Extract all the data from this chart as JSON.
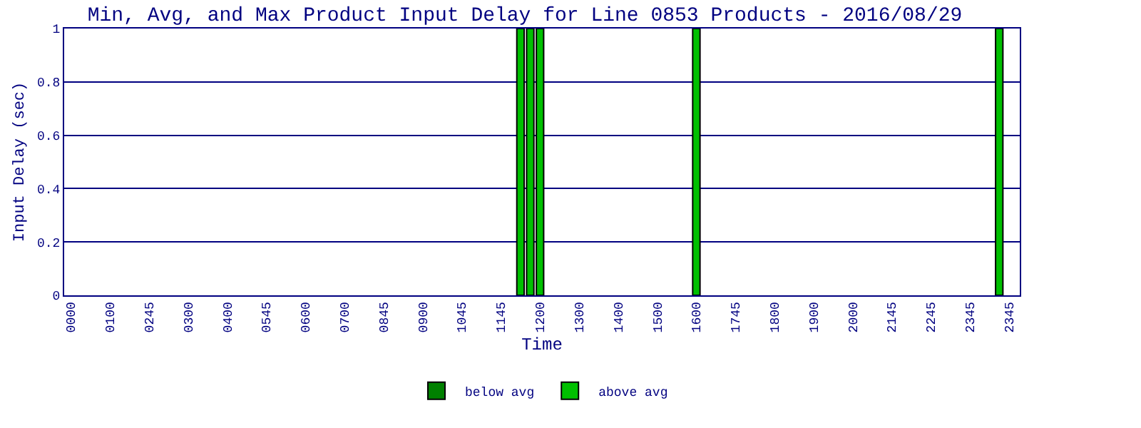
{
  "chart_data": {
    "type": "bar",
    "title": "Min, Avg, and Max Product Input Delay for Line 0853 Products - 2016/08/29",
    "xlabel": "Time",
    "ylabel": "Input Delay (sec)",
    "categories": [
      "0000",
      null,
      null,
      null,
      "0100",
      null,
      null,
      null,
      "0245",
      null,
      null,
      null,
      "0300",
      null,
      null,
      null,
      "0400",
      null,
      null,
      null,
      "0545",
      null,
      null,
      null,
      "0600",
      null,
      null,
      null,
      "0700",
      null,
      null,
      null,
      "0845",
      null,
      null,
      null,
      "0900",
      null,
      null,
      null,
      "1045",
      null,
      null,
      null,
      "1145",
      null,
      null,
      null,
      "1200",
      null,
      null,
      null,
      "1300",
      null,
      null,
      null,
      "1400",
      null,
      null,
      null,
      "1500",
      null,
      null,
      null,
      "1600",
      null,
      null,
      null,
      "1745",
      null,
      null,
      null,
      "1800",
      null,
      null,
      null,
      "1900",
      null,
      null,
      null,
      "2000",
      null,
      null,
      null,
      "2145",
      null,
      null,
      null,
      "2245",
      null,
      null,
      null,
      "2345",
      null,
      null,
      null,
      "2345"
    ],
    "series": [
      {
        "name": "below avg",
        "color": "#008000",
        "values": [
          null,
          null,
          null,
          null,
          null,
          null,
          null,
          null,
          null,
          null,
          null,
          null,
          null,
          null,
          null,
          null,
          null,
          null,
          null,
          null,
          null,
          null,
          null,
          null,
          null,
          null,
          null,
          null,
          null,
          null,
          null,
          null,
          null,
          null,
          null,
          null,
          null,
          null,
          null,
          null,
          null,
          null,
          null,
          null,
          null,
          null,
          null,
          null,
          null,
          null,
          null,
          null,
          null,
          null,
          null,
          null,
          null,
          null,
          null,
          null,
          null,
          null,
          null,
          null,
          null,
          null,
          null,
          null,
          null,
          null,
          null,
          null,
          null,
          null,
          null,
          null,
          null,
          null,
          null,
          null,
          null,
          null,
          null,
          null,
          null,
          null,
          null,
          null,
          null,
          null,
          null,
          null,
          null,
          null,
          null,
          null,
          null
        ]
      },
      {
        "name": "above avg",
        "color": "#00c000",
        "values": [
          null,
          null,
          null,
          null,
          null,
          null,
          null,
          null,
          null,
          null,
          null,
          null,
          null,
          null,
          null,
          null,
          null,
          null,
          null,
          null,
          null,
          null,
          null,
          null,
          null,
          null,
          null,
          null,
          null,
          null,
          null,
          null,
          null,
          null,
          null,
          null,
          null,
          null,
          null,
          null,
          null,
          null,
          null,
          null,
          null,
          null,
          1,
          1,
          1,
          null,
          null,
          null,
          null,
          null,
          null,
          null,
          null,
          null,
          null,
          null,
          null,
          null,
          null,
          null,
          1,
          null,
          null,
          null,
          null,
          null,
          null,
          null,
          null,
          null,
          null,
          null,
          null,
          null,
          null,
          null,
          null,
          null,
          null,
          null,
          null,
          null,
          null,
          null,
          null,
          null,
          null,
          null,
          null,
          null,
          null,
          1,
          null
        ]
      }
    ],
    "ylim": [
      0,
      1
    ],
    "yticks": [
      0,
      0.2,
      0.4,
      0.6,
      0.8,
      1
    ],
    "grid": "y",
    "legend": "bottom"
  }
}
